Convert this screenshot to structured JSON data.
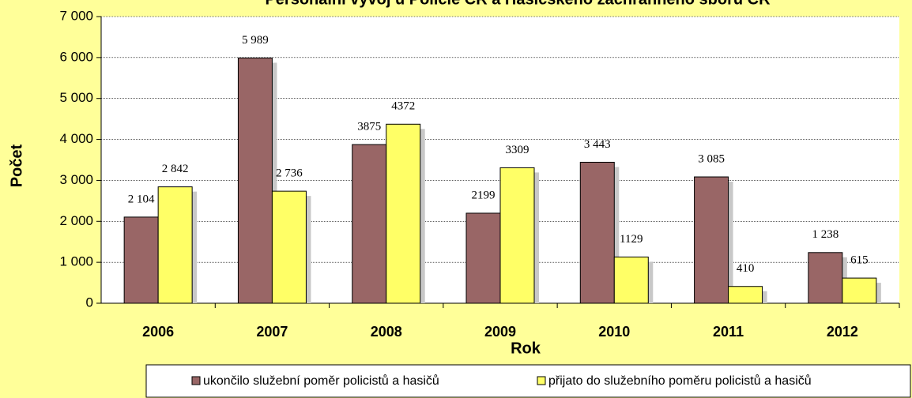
{
  "chart_data": {
    "type": "bar",
    "title": "Personální vývoj u Policie ČR a Hasičského záchranného sboru ČR",
    "x_label": "Rok",
    "y_label": "Počet",
    "categories": [
      "2006",
      "2007",
      "2008",
      "2009",
      "2010",
      "2011",
      "2012"
    ],
    "series": [
      {
        "name": "ukončilo služební poměr policistů a hasičů",
        "color": "#996666",
        "values": [
          2104,
          5989,
          3875,
          2199,
          3443,
          3085,
          1238
        ],
        "value_labels": [
          "2 104",
          "5 989",
          "3875",
          "2199",
          "3 443",
          "3 085",
          "1 238"
        ]
      },
      {
        "name": "přijato do služebního poměru policistů a hasičů",
        "color": "#ffff66",
        "values": [
          2842,
          2736,
          4372,
          3309,
          1129,
          410,
          615
        ],
        "value_labels": [
          "2 842",
          "2 736",
          "4372",
          "3309",
          "1129",
          "410",
          "615"
        ]
      }
    ],
    "ylim": [
      0,
      7000
    ],
    "yticks": [
      {
        "value": 0,
        "label": "0"
      },
      {
        "value": 1000,
        "label": "1 000"
      },
      {
        "value": 2000,
        "label": "2 000"
      },
      {
        "value": 3000,
        "label": "3 000"
      },
      {
        "value": 4000,
        "label": "4 000"
      },
      {
        "value": 5000,
        "label": "5 000"
      },
      {
        "value": 6000,
        "label": "6 000"
      },
      {
        "value": 7000,
        "label": "7 000"
      }
    ],
    "grid": true
  }
}
